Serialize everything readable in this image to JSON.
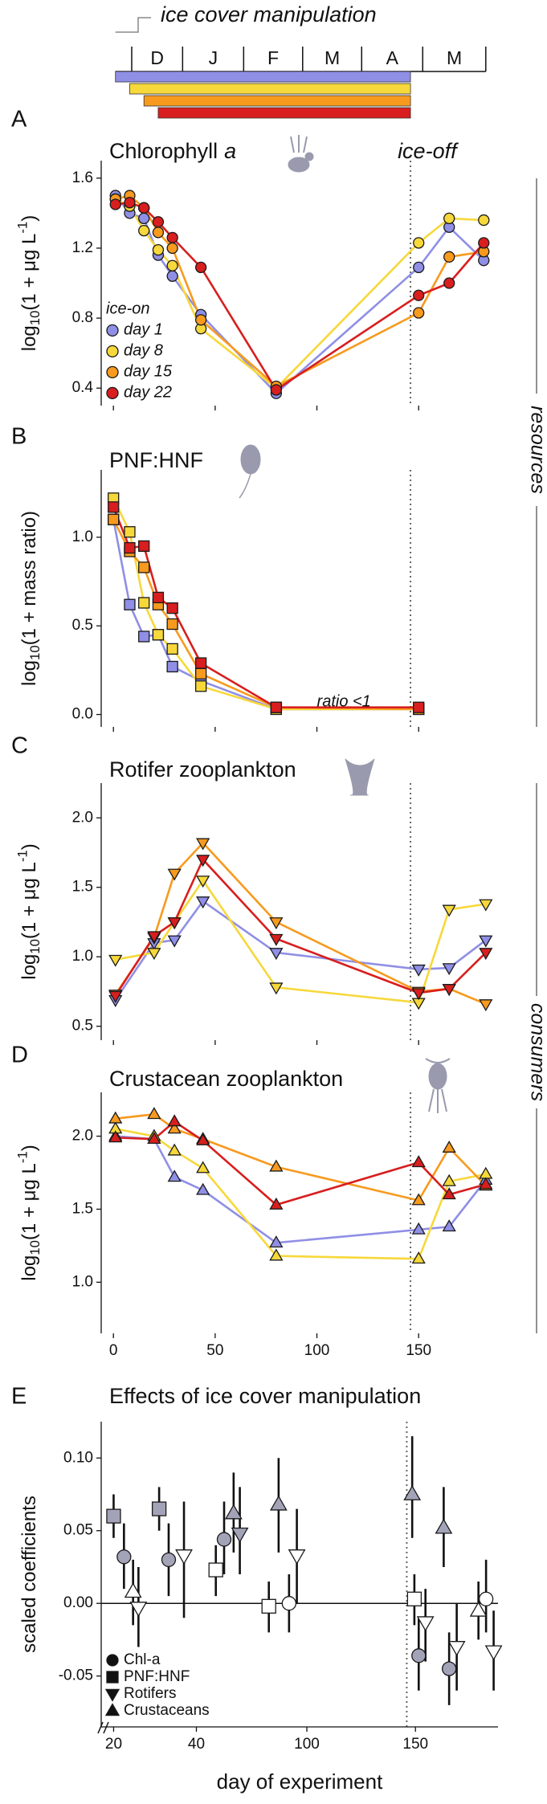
{
  "timeline": {
    "title": "ice cover manipulation",
    "months": [
      "D",
      "J",
      "F",
      "M",
      "A",
      "M"
    ],
    "month_edges": [
      9,
      34,
      64,
      93,
      122,
      152,
      183
    ],
    "starts": [
      1,
      8,
      15,
      22
    ],
    "end": 146,
    "colors": [
      "#8f8fe6",
      "#f7d83b",
      "#f79a1e",
      "#d81e1e"
    ]
  },
  "chart_data": [
    {
      "type": "line",
      "label": "A",
      "title": [
        {
          "text": "Chlorophyll"
        },
        {
          "text": "a",
          "style": "italic"
        }
      ],
      "ylabel": [
        {
          "text": "log"
        },
        {
          "text": "10",
          "shift": "sub"
        },
        {
          "text": "(1 + μg L"
        },
        {
          "text": "-1",
          "shift": "super"
        },
        {
          "text": ")"
        }
      ],
      "marker": "circle",
      "x": [
        1,
        8,
        15,
        22,
        29,
        43,
        80,
        150,
        165,
        182
      ],
      "series": [
        {
          "name": "day 1",
          "color": "#8f8fe6",
          "values": [
            1.5,
            1.4,
            1.37,
            1.16,
            1.04,
            0.82,
            0.37,
            1.09,
            1.32,
            1.13
          ]
        },
        {
          "name": "day 8",
          "color": "#f7d83b",
          "values": [
            1.48,
            1.44,
            1.3,
            1.19,
            1.1,
            0.74,
            0.4,
            1.23,
            1.37,
            1.36
          ]
        },
        {
          "name": "day 15",
          "color": "#f79a1e",
          "values": [
            1.48,
            1.5,
            1.43,
            1.29,
            1.2,
            0.79,
            0.41,
            0.83,
            1.15,
            1.18
          ]
        },
        {
          "name": "day 22",
          "color": "#d81e1e",
          "values": [
            1.45,
            1.46,
            1.43,
            1.35,
            1.26,
            1.09,
            0.39,
            0.93,
            1.0,
            1.23
          ]
        }
      ],
      "xlim": [
        -6,
        189
      ],
      "xticks": [
        0,
        50,
        100,
        150
      ],
      "xtick_labels": false,
      "ylim": [
        0.3,
        1.7
      ],
      "yticks": [
        0.4,
        0.8,
        1.2,
        1.6
      ],
      "vline": 146,
      "annotation": "ice-off",
      "legend_title": "ice-on",
      "legend": "bottom-left"
    },
    {
      "type": "line",
      "label": "B",
      "title": [
        {
          "text": "PNF:HNF"
        }
      ],
      "ylabel": [
        {
          "text": "log"
        },
        {
          "text": "10",
          "shift": "sub"
        },
        {
          "text": "(1 + mass ratio)"
        }
      ],
      "marker": "square",
      "x": [
        0,
        8,
        15,
        22,
        29,
        43,
        80,
        150
      ],
      "series": [
        {
          "name": "day 1",
          "color": "#8f8fe6",
          "values": [
            1.1,
            0.62,
            0.44,
            0.45,
            0.27,
            0.19,
            0.03,
            0.03
          ]
        },
        {
          "name": "day 8",
          "color": "#f7d83b",
          "values": [
            1.22,
            1.03,
            0.63,
            0.45,
            0.37,
            0.16,
            0.03,
            0.03
          ]
        },
        {
          "name": "day 15",
          "color": "#f79a1e",
          "values": [
            1.1,
            0.92,
            0.83,
            0.62,
            0.51,
            0.23,
            0.04,
            0.03
          ]
        },
        {
          "name": "day 22",
          "color": "#d81e1e",
          "values": [
            1.17,
            0.94,
            0.95,
            0.66,
            0.6,
            0.29,
            0.04,
            0.04
          ]
        }
      ],
      "xlim": [
        -6,
        189
      ],
      "xticks": [
        0,
        50,
        100,
        150
      ],
      "xtick_labels": false,
      "ylim": [
        -0.07,
        1.38
      ],
      "yticks": [
        {
          "value": 0,
          "label": "0.0"
        },
        0.5,
        {
          "value": 1,
          "label": "1.0"
        }
      ],
      "vline": 146,
      "annotation": "ratio <1",
      "annotation_at": [
        100,
        0.07
      ]
    },
    {
      "type": "line",
      "label": "C",
      "title": [
        {
          "text": "Rotifer zooplankton"
        }
      ],
      "ylabel": [
        {
          "text": "log"
        },
        {
          "text": "10",
          "shift": "sub"
        },
        {
          "text": "(1 + μg L"
        },
        {
          "text": "-1",
          "shift": "super"
        },
        {
          "text": ")"
        }
      ],
      "marker": "tri-down",
      "x": [
        1,
        20,
        30,
        44,
        80,
        150,
        165,
        183
      ],
      "series": [
        {
          "name": "day 1",
          "color": "#8f8fe6",
          "values": [
            0.69,
            1.1,
            1.12,
            1.4,
            1.03,
            0.91,
            0.92,
            1.12
          ]
        },
        {
          "name": "day 8",
          "color": "#f7d83b",
          "values": [
            0.98,
            1.03,
            1.25,
            1.55,
            0.78,
            0.67,
            1.34,
            1.38
          ]
        },
        {
          "name": "day 15",
          "color": "#f79a1e",
          "values": [
            0.73,
            1.14,
            1.6,
            1.82,
            1.25,
            0.75,
            0.77,
            0.66
          ]
        },
        {
          "name": "day 22",
          "color": "#d81e1e",
          "values": [
            0.72,
            1.15,
            1.25,
            1.7,
            1.13,
            0.74,
            0.77,
            1.03
          ]
        }
      ],
      "xlim": [
        -6,
        189
      ],
      "xticks": [
        0,
        50,
        100,
        150
      ],
      "xtick_labels": false,
      "ylim": [
        0.4,
        2.25
      ],
      "yticks": [
        0.5,
        {
          "value": 1,
          "label": "1.0"
        },
        1.5,
        {
          "value": 2,
          "label": "2.0"
        }
      ],
      "vline": 146
    },
    {
      "type": "line",
      "label": "D",
      "title": [
        {
          "text": "Crustacean zooplankton"
        }
      ],
      "ylabel": [
        {
          "text": "log"
        },
        {
          "text": "10",
          "shift": "sub"
        },
        {
          "text": "(1 + μg L"
        },
        {
          "text": "-1",
          "shift": "super"
        },
        {
          "text": ")"
        }
      ],
      "marker": "tri-up",
      "x": [
        1,
        20,
        30,
        44,
        80,
        150,
        165,
        183
      ],
      "series": [
        {
          "name": "day 1",
          "color": "#8f8fe6",
          "values": [
            2.0,
            1.98,
            1.72,
            1.63,
            1.27,
            1.36,
            1.38,
            1.7
          ]
        },
        {
          "name": "day 8",
          "color": "#f7d83b",
          "values": [
            2.05,
            2.0,
            1.9,
            1.78,
            1.18,
            1.16,
            1.69,
            1.74
          ]
        },
        {
          "name": "day 15",
          "color": "#f79a1e",
          "values": [
            2.12,
            2.15,
            2.05,
            1.98,
            1.79,
            1.56,
            1.92,
            1.66
          ]
        },
        {
          "name": "day 22",
          "color": "#d81e1e",
          "values": [
            1.99,
            1.98,
            2.1,
            1.97,
            1.53,
            1.82,
            1.6,
            1.67
          ]
        }
      ],
      "xlim": [
        -6,
        189
      ],
      "xticks": [
        0,
        50,
        100,
        150
      ],
      "xtick_labels": true,
      "ylim": [
        0.65,
        2.3
      ],
      "yticks": [
        {
          "value": 1,
          "label": "1.0"
        },
        1.5,
        {
          "value": 2,
          "label": "2.0"
        }
      ],
      "vline": 146
    },
    {
      "type": "coef",
      "label": "E",
      "title": [
        {
          "text": "Effects of ice cover manipulation"
        }
      ],
      "ylabel": [
        {
          "text": "scaled coefficients"
        }
      ],
      "xlabel": "day of experiment",
      "xlim": [
        [
          17,
          52
        ],
        [
          72,
          188
        ]
      ],
      "xticks": [
        20,
        40,
        100,
        150
      ],
      "ylim": [
        -0.085,
        0.125
      ],
      "yticks": [
        {
          "value": 0.1,
          "label": "0.10"
        },
        0.05,
        {
          "value": 0,
          "label": "0.00"
        },
        -0.05
      ],
      "hline": 0,
      "vline": 146,
      "legend": "bottom-left",
      "series": [
        {
          "name": "Chl-a",
          "marker": "circle",
          "x": [
            22.5,
            33.3,
            46.7,
            91.8,
            151.5,
            165.5,
            182.5
          ],
          "values": [
            0.032,
            0.03,
            0.044,
            0.0,
            -0.036,
            -0.045,
            0.003
          ],
          "lower": [
            0.01,
            0.005,
            0.02,
            -0.02,
            -0.06,
            -0.07,
            -0.02
          ],
          "upper": [
            0.055,
            0.055,
            0.07,
            0.02,
            -0.01,
            -0.02,
            0.03
          ],
          "fills": [
            "#a3a3b8",
            "#a3a3b8",
            "#a3a3b8",
            "#ffffff",
            "#a3a3b8",
            "#a3a3b8",
            "#ffffff"
          ]
        },
        {
          "name": "PNF:HNF",
          "marker": "square",
          "x": [
            20,
            31,
            44.7,
            82.5,
            149.5
          ],
          "values": [
            0.06,
            0.065,
            0.023,
            -0.002,
            0.003
          ],
          "lower": [
            0.045,
            0.05,
            0.005,
            -0.02,
            -0.015
          ],
          "upper": [
            0.075,
            0.08,
            0.04,
            0.015,
            0.02
          ],
          "fills": [
            "#a3a3b8",
            "#a3a3b8",
            "#ffffff",
            "#ffffff",
            "#ffffff"
          ]
        },
        {
          "name": "Rotifers",
          "marker": "tri-down",
          "x": [
            26,
            37,
            50.5,
            95.4,
            154.6,
            169,
            186
          ],
          "values": [
            -0.003,
            0.033,
            0.048,
            0.033,
            -0.013,
            -0.03,
            -0.033
          ],
          "lower": [
            -0.03,
            -0.01,
            0.02,
            0.0,
            -0.04,
            -0.06,
            -0.06
          ],
          "upper": [
            0.025,
            0.07,
            0.08,
            0.065,
            0.01,
            0.0,
            -0.005
          ],
          "fills": [
            "#ffffff",
            "#ffffff",
            "#a3a3b8",
            "#ffffff",
            "#ffffff",
            "#ffffff",
            "#ffffff"
          ]
        },
        {
          "name": "Crustaceans",
          "marker": "tri-up",
          "x": [
            24.7,
            49,
            87,
            148.5,
            163,
            179
          ],
          "values": [
            0.008,
            0.062,
            0.068,
            0.075,
            0.052,
            -0.005
          ],
          "lower": [
            -0.015,
            0.035,
            0.035,
            0.045,
            0.025,
            -0.025
          ],
          "upper": [
            0.03,
            0.09,
            0.1,
            0.115,
            0.08,
            0.015
          ],
          "fills": [
            "#ffffff",
            "#a3a3b8",
            "#a3a3b8",
            "#a3a3b8",
            "#a3a3b8",
            "#ffffff"
          ]
        }
      ]
    }
  ],
  "side_labels": [
    "resources",
    "consumers"
  ]
}
